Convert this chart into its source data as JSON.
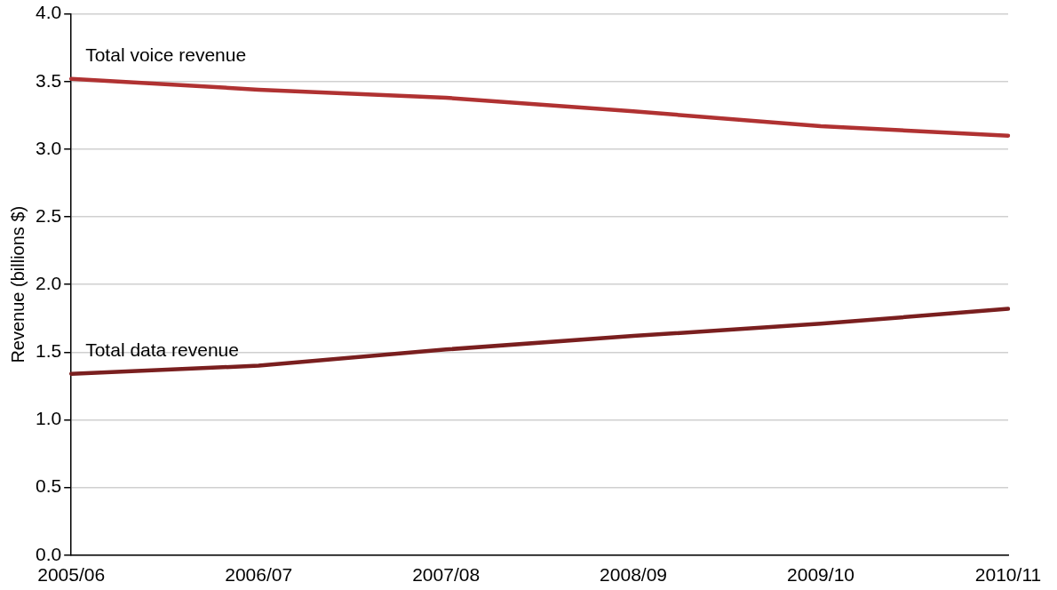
{
  "chart_data": {
    "type": "line",
    "ylabel": "Revenue (billions $)",
    "categories": [
      "2005/06",
      "2006/07",
      "2007/08",
      "2008/09",
      "2009/10",
      "2010/11"
    ],
    "series": [
      {
        "name": "Total voice revenue",
        "color": "#b03232",
        "values": [
          3.52,
          3.44,
          3.38,
          3.28,
          3.17,
          3.1
        ]
      },
      {
        "name": "Total data revenue",
        "color": "#7a1f1f",
        "values": [
          1.34,
          1.4,
          1.52,
          1.62,
          1.71,
          1.82
        ]
      }
    ],
    "ylim": [
      0,
      4
    ],
    "yticks": [
      {
        "value": 0,
        "label": "0.0"
      },
      {
        "value": 0.5,
        "label": "0.5"
      },
      {
        "value": 1,
        "label": "1.0"
      },
      {
        "value": 1.5,
        "label": "1.5"
      },
      {
        "value": 2,
        "label": "2.0"
      },
      {
        "value": 2.5,
        "label": "2.5"
      },
      {
        "value": 3,
        "label": "3.0"
      },
      {
        "value": 3.5,
        "label": "3.5"
      },
      {
        "value": 4,
        "label": "4.0"
      }
    ],
    "grid": "y",
    "legend": false,
    "marker": "none",
    "line_style": "solid"
  }
}
